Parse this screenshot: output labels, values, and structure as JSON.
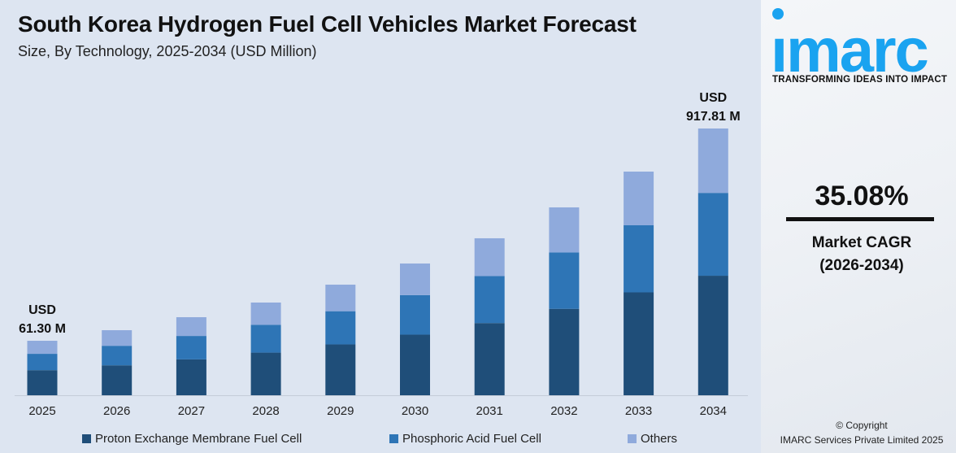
{
  "header": {
    "title": "South Korea Hydrogen Fuel Cell Vehicles Market Forecast",
    "subtitle": "Size, By Technology, 2025-2034 (USD Million)"
  },
  "chart_data": {
    "type": "bar",
    "stacked": true,
    "title": "South Korea Hydrogen Fuel Cell Vehicles Market Forecast",
    "subtitle": "Size, By Technology, 2025-2034 (USD Million)",
    "categories": [
      "2025",
      "2026",
      "2027",
      "2028",
      "2029",
      "2030",
      "2031",
      "2032",
      "2033",
      "2034"
    ],
    "series": [
      {
        "name": "Proton Exchange Membrane Fuel Cell",
        "color": "#1f4e79",
        "values": [
          28.2,
          47.8,
          71.9,
          99.1,
          132.3,
          171.6,
          218.4,
          275.8,
          342.2,
          411.2
        ]
      },
      {
        "name": "Phosphoric Acid Fuel Cell",
        "color": "#2e75b6",
        "values": [
          18.4,
          31.2,
          46.9,
          64.7,
          86.3,
          111.9,
          142.4,
          179.9,
          223.2,
          285.0
        ]
      },
      {
        "name": "Others",
        "color": "#8faadc",
        "values": [
          14.7,
          24.9,
          37.6,
          51.7,
          69.1,
          89.5,
          114.0,
          143.8,
          178.5,
          221.6
        ]
      }
    ],
    "totals": [
      61.3,
      103.9,
      156.4,
      215.5,
      287.7,
      373.0,
      474.8,
      599.5,
      743.9,
      917.81
    ],
    "annotations": [
      {
        "category": "2025",
        "line1": "USD",
        "line2": "61.30 M"
      },
      {
        "category": "2034",
        "line1": "USD",
        "line2": "917.81 M"
      }
    ],
    "y_axis_visible": false,
    "grid": false,
    "legend_position": "bottom"
  },
  "side": {
    "brand": "imarc",
    "tagline": "TRANSFORMING IDEAS INTO IMPACT",
    "cagr_value": "35.08%",
    "cagr_label": "Market CAGR",
    "cagr_period": "(2026-2034)",
    "copyright": "© Copyright",
    "company": "IMARC Services Private Limited 2025",
    "brand_color": "#1aa3f0"
  }
}
